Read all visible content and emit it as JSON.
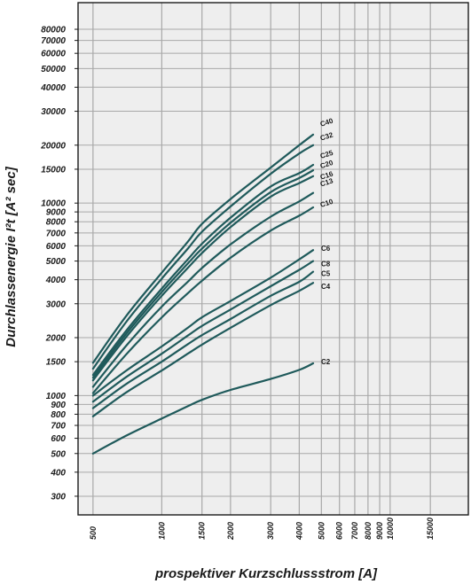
{
  "chart_data": {
    "type": "line",
    "xlabel": "prospektiver Kurzschlussstrom [A]",
    "ylabel": "Durchlassenergie I²t [A² sec]",
    "x_scale": "log",
    "y_scale": "log",
    "xlim": [
      430,
      22000
    ],
    "ylim": [
      240,
      110000
    ],
    "grid": true,
    "legend": "none",
    "x_ticks": [
      {
        "value": 500,
        "label": "500"
      },
      {
        "value": 1000,
        "label": "1000"
      },
      {
        "value": 1500,
        "label": "1500"
      },
      {
        "value": 2000,
        "label": "2000"
      },
      {
        "value": 3000,
        "label": "3000"
      },
      {
        "value": 4000,
        "label": "4000"
      },
      {
        "value": 5000,
        "label": "5000"
      },
      {
        "value": 6000,
        "label": "6000"
      },
      {
        "value": 7000,
        "label": "7000"
      },
      {
        "value": 8000,
        "label": "8000"
      },
      {
        "value": 9000,
        "label": "9000"
      },
      {
        "value": 10000,
        "label": "10000"
      },
      {
        "value": 15000,
        "label": "15000"
      }
    ],
    "y_ticks": [
      {
        "value": 300,
        "label": "300"
      },
      {
        "value": 400,
        "label": "400"
      },
      {
        "value": 500,
        "label": "500"
      },
      {
        "value": 600,
        "label": "600"
      },
      {
        "value": 700,
        "label": "700"
      },
      {
        "value": 800,
        "label": "800"
      },
      {
        "value": 900,
        "label": "900"
      },
      {
        "value": 1000,
        "label": "1000"
      },
      {
        "value": 1500,
        "label": "1500"
      },
      {
        "value": 2000,
        "label": "2000"
      },
      {
        "value": 3000,
        "label": "3000"
      },
      {
        "value": 4000,
        "label": "4000"
      },
      {
        "value": 5000,
        "label": "5000"
      },
      {
        "value": 6000,
        "label": "6000"
      },
      {
        "value": 7000,
        "label": "7000"
      },
      {
        "value": 8000,
        "label": "8000"
      },
      {
        "value": 9000,
        "label": "9000"
      },
      {
        "value": 10000,
        "label": "10000"
      },
      {
        "value": 15000,
        "label": "15000"
      },
      {
        "value": 20000,
        "label": "20000"
      },
      {
        "value": 30000,
        "label": "30000"
      },
      {
        "value": 40000,
        "label": "40000"
      },
      {
        "value": 50000,
        "label": "50000"
      },
      {
        "value": 60000,
        "label": "60000"
      },
      {
        "value": 70000,
        "label": "70000"
      },
      {
        "value": 80000,
        "label": "80000"
      }
    ],
    "x": [
      500,
      700,
      1000,
      1300,
      1500,
      2000,
      3000,
      4000,
      4600
    ],
    "series": [
      {
        "name": "C40",
        "values": [
          1480,
          2600,
          4350,
          6300,
          7800,
          10500,
          15300,
          20000,
          22700
        ]
      },
      {
        "name": "C32",
        "values": [
          1380,
          2420,
          4050,
          5800,
          7100,
          9600,
          14200,
          18100,
          20000
        ]
      },
      {
        "name": "C25",
        "values": [
          1280,
          2180,
          3600,
          5100,
          6150,
          8400,
          12200,
          14300,
          15800
        ]
      },
      {
        "name": "C20",
        "values": [
          1240,
          2100,
          3450,
          4850,
          5800,
          7900,
          11400,
          13500,
          14800
        ]
      },
      {
        "name": "C16",
        "values": [
          1200,
          2020,
          3300,
          4600,
          5500,
          7500,
          10800,
          12700,
          13800
        ]
      },
      {
        "name": "C13",
        "values": [
          1110,
          1820,
          2900,
          3900,
          4600,
          6100,
          8500,
          10200,
          11300
        ]
      },
      {
        "name": "C10",
        "values": [
          1030,
          1640,
          2550,
          3400,
          3950,
          5200,
          7200,
          8600,
          9500
        ]
      },
      {
        "name": "C6",
        "values": [
          1000,
          1350,
          1800,
          2250,
          2550,
          3100,
          4100,
          5100,
          5700
        ]
      },
      {
        "name": "C8",
        "values": [
          930,
          1250,
          1650,
          2050,
          2300,
          2800,
          3700,
          4500,
          5000
        ]
      },
      {
        "name": "C5",
        "values": [
          860,
          1150,
          1500,
          1850,
          2060,
          2500,
          3300,
          3900,
          4400
        ]
      },
      {
        "name": "C4",
        "values": [
          780,
          1040,
          1350,
          1650,
          1840,
          2250,
          2950,
          3500,
          3850
        ]
      },
      {
        "name": "C2",
        "values": [
          500,
          620,
          760,
          880,
          950,
          1070,
          1220,
          1360,
          1470
        ]
      }
    ],
    "series_labels": [
      {
        "series": "C40",
        "text": "C40"
      },
      {
        "series": "C32",
        "text": "C32"
      },
      {
        "series": "C25",
        "text": "C25"
      },
      {
        "series": "C20",
        "text": "C20"
      },
      {
        "series": "C16",
        "text": "C16"
      },
      {
        "series": "C13",
        "text": "C13"
      },
      {
        "series": "C10",
        "text": "C10"
      },
      {
        "series": "C6",
        "text": "C6"
      },
      {
        "series": "C8",
        "text": "C8"
      },
      {
        "series": "C5",
        "text": "C5"
      },
      {
        "series": "C4",
        "text": "C4"
      },
      {
        "series": "C2",
        "text": "C2"
      }
    ],
    "colors": {
      "line": "#1f5a5b",
      "grid": "#a8a8a8",
      "plot_bg": "#eeeeee",
      "frame": "#1a1a1a"
    }
  }
}
